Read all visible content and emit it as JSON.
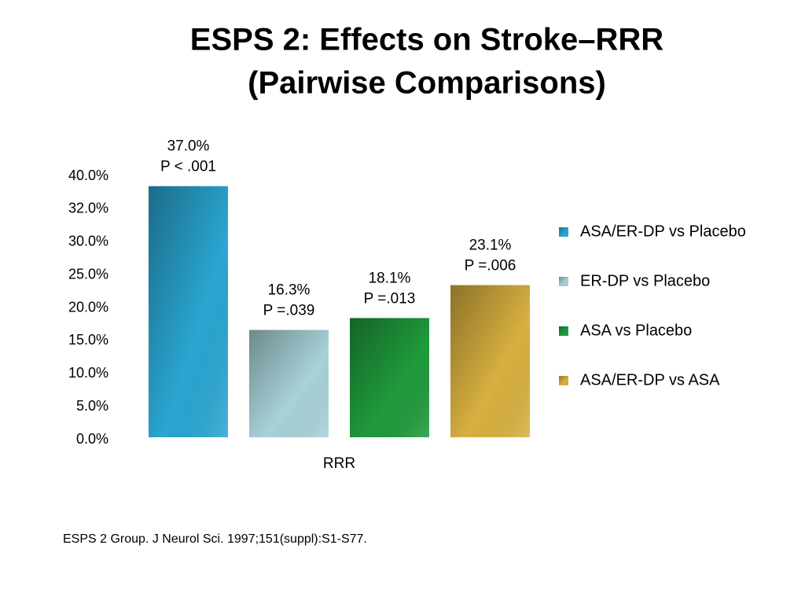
{
  "chart_data": {
    "type": "bar",
    "title": [
      "ESPS 2: Effects on Stroke–RRR",
      "(Pairwise Comparisons)"
    ],
    "categories": [
      "RRR"
    ],
    "series": [
      {
        "name": "ASA/ER-DP vs Placebo",
        "color": "#2aa6d2",
        "values": [
          37.0
        ],
        "value_labels": [
          "37.0%"
        ],
        "p_labels": [
          "P < .001"
        ]
      },
      {
        "name": "ER-DP vs Placebo",
        "color": "#a8d2d8",
        "values": [
          16.3
        ],
        "value_labels": [
          "16.3%"
        ],
        "p_labels": [
          "P =.039"
        ]
      },
      {
        "name": "ASA vs Placebo",
        "color": "#1f9a3c",
        "values": [
          18.1
        ],
        "value_labels": [
          "18.1%"
        ],
        "p_labels": [
          "P =.013"
        ]
      },
      {
        "name": "ASA/ER-DP vs ASA",
        "color": "#d8b040",
        "values": [
          23.1
        ],
        "value_labels": [
          "23.1%"
        ],
        "p_labels": [
          "P =.006"
        ]
      }
    ],
    "ylim": [
      0,
      40
    ],
    "yticks": [
      {
        "value": 0,
        "label": "0.0%"
      },
      {
        "value": 5,
        "label": "5.0%"
      },
      {
        "value": 10,
        "label": "10.0%"
      },
      {
        "value": 15,
        "label": "15.0%"
      },
      {
        "value": 20,
        "label": "20.0%"
      },
      {
        "value": 25,
        "label": "25.0%"
      },
      {
        "value": 30,
        "label": "30.0%"
      },
      {
        "value": 32,
        "label": "32.0%"
      },
      {
        "value": 40,
        "label": "40.0%"
      }
    ],
    "grid": false,
    "legend": "right",
    "footnote": "ESPS 2 Group. J Neurol Sci. 1997;151(suppl):S1-S77."
  }
}
